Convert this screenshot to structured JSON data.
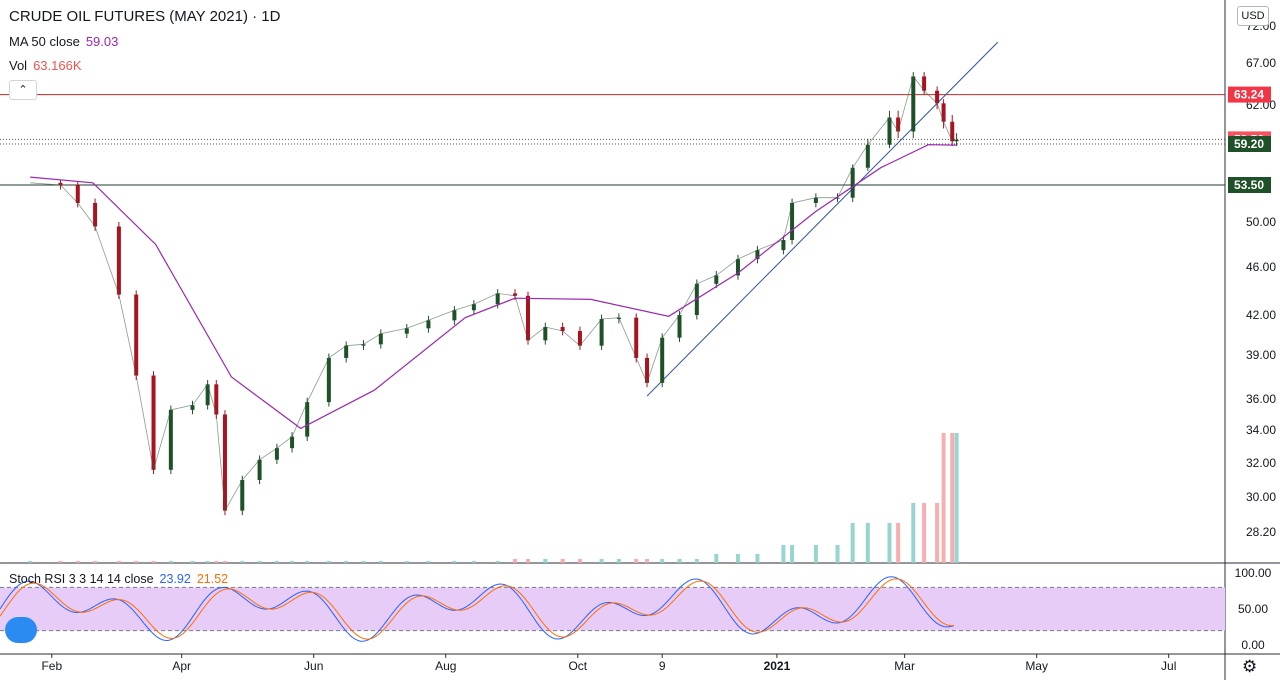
{
  "header": {
    "title": "CRUDE OIL FUTURES (MAY 2021) · 1D",
    "ma_label": "MA 50 close",
    "ma_value": "59.03",
    "vol_label": "Vol",
    "vol_value": "63.166K",
    "currency": "USD",
    "collapse_icon": "chevron-up-icon"
  },
  "rsi": {
    "label": "Stoch RSI 3 3 14 14 close",
    "k_value": "23.92",
    "d_value": "21.52",
    "levels": [
      80,
      20
    ],
    "ticks": [
      "100.00",
      "50.00",
      "0.00"
    ]
  },
  "price_tags": [
    {
      "label": "63.24",
      "value": 63.24,
      "color": "#f23645"
    },
    {
      "label": "59.53",
      "value": 59.53,
      "color": "#f7525f"
    },
    {
      "label": "59.20",
      "value": 59.2,
      "color": "#1e5128"
    },
    {
      "label": "53.50",
      "value": 53.5,
      "color": "#1e5128"
    }
  ],
  "colors": {
    "up": "#26a69a",
    "candle_up": "#1e5128",
    "candle_down": "#a8131f",
    "ma": "#9c27b0",
    "k_line": "#2962ff",
    "d_line": "#ff6d00",
    "trend": "#2a4fa8",
    "rsi_band": "#e8ccf8"
  },
  "chart_data": {
    "type": "candlestick",
    "title": "CRUDE OIL FUTURES (MAY 2021) · 1D",
    "price_axis_ticks": [
      "72.00",
      "67.00",
      "62.00",
      "50.00",
      "46.00",
      "42.00",
      "39.00",
      "36.00",
      "34.00",
      "32.00",
      "30.00",
      "28.20"
    ],
    "time_axis_ticks": [
      "Feb",
      "Apr",
      "Jun",
      "Aug",
      "Oct",
      "9",
      "2021",
      "Mar",
      "May",
      "Jul"
    ],
    "ma_close_points": [
      [
        "2020-01-22",
        54.6
      ],
      [
        "2020-02-20",
        53.8
      ],
      [
        "2020-03-20",
        48.0
      ],
      [
        "2020-04-24",
        37.5
      ],
      [
        "2020-05-26",
        34.1
      ],
      [
        "2020-06-29",
        36.6
      ],
      [
        "2020-08-10",
        41.8
      ],
      [
        "2020-09-02",
        43.4
      ],
      [
        "2020-10-07",
        43.3
      ],
      [
        "2020-11-12",
        41.9
      ],
      [
        "2020-12-14",
        45.5
      ],
      [
        "2021-01-19",
        51.0
      ],
      [
        "2021-02-18",
        55.9
      ],
      [
        "2021-03-12",
        59.1
      ],
      [
        "2021-03-25",
        59.03
      ]
    ],
    "daily_closes": [
      [
        "2020-01-22",
        53.8
      ],
      [
        "2020-02-05",
        53.5
      ],
      [
        "2020-02-13",
        51.8
      ],
      [
        "2020-02-21",
        49.6
      ],
      [
        "2020-03-03",
        43.7
      ],
      [
        "2020-03-11",
        37.6
      ],
      [
        "2020-03-19",
        31.6
      ],
      [
        "2020-03-27",
        35.3
      ],
      [
        "2020-04-06",
        35.6
      ],
      [
        "2020-04-13",
        37.0
      ],
      [
        "2020-04-17",
        35.0
      ],
      [
        "2020-04-21",
        29.3
      ],
      [
        "2020-04-29",
        31.0
      ],
      [
        "2020-05-07",
        32.2
      ],
      [
        "2020-05-15",
        32.9
      ],
      [
        "2020-05-22",
        33.6
      ],
      [
        "2020-05-29",
        35.8
      ],
      [
        "2020-06-08",
        38.8
      ],
      [
        "2020-06-16",
        39.7
      ],
      [
        "2020-06-24",
        39.8
      ],
      [
        "2020-07-02",
        40.6
      ],
      [
        "2020-07-14",
        41.0
      ],
      [
        "2020-07-24",
        41.6
      ],
      [
        "2020-08-05",
        42.4
      ],
      [
        "2020-08-14",
        42.9
      ],
      [
        "2020-08-25",
        43.8
      ],
      [
        "2020-09-02",
        43.6
      ],
      [
        "2020-09-08",
        40.1
      ],
      [
        "2020-09-16",
        41.1
      ],
      [
        "2020-09-24",
        40.8
      ],
      [
        "2020-10-02",
        39.7
      ],
      [
        "2020-10-12",
        41.7
      ],
      [
        "2020-10-20",
        41.8
      ],
      [
        "2020-10-28",
        38.8
      ],
      [
        "2020-11-02",
        37.1
      ],
      [
        "2020-11-09",
        40.3
      ],
      [
        "2020-11-17",
        42.0
      ],
      [
        "2020-11-25",
        44.6
      ],
      [
        "2020-12-04",
        45.3
      ],
      [
        "2020-12-14",
        46.7
      ],
      [
        "2020-12-23",
        47.5
      ],
      [
        "2021-01-04",
        48.4
      ],
      [
        "2021-01-08",
        51.8
      ],
      [
        "2021-01-19",
        52.3
      ],
      [
        "2021-01-29",
        52.3
      ],
      [
        "2021-02-05",
        55.9
      ],
      [
        "2021-02-12",
        59.1
      ],
      [
        "2021-02-22",
        61.1
      ],
      [
        "2021-02-26",
        60.1
      ],
      [
        "2021-03-05",
        65.4
      ],
      [
        "2021-03-10",
        63.7
      ],
      [
        "2021-03-16",
        62.2
      ],
      [
        "2021-03-19",
        60.8
      ],
      [
        "2021-03-23",
        59.4
      ],
      [
        "2021-03-25",
        59.5
      ]
    ],
    "hlines": [
      63.24,
      59.53,
      59.2,
      53.5
    ],
    "trend_line": [
      [
        "2020-11-02",
        36.2
      ],
      [
        "2021-04-13",
        69.8
      ]
    ],
    "volume_label": "63.166K",
    "stoch_rsi": {
      "k": 23.92,
      "d": 21.52,
      "upper": 80,
      "lower": 20,
      "range": [
        0,
        100
      ]
    },
    "grid": false,
    "legend": "top-left"
  }
}
